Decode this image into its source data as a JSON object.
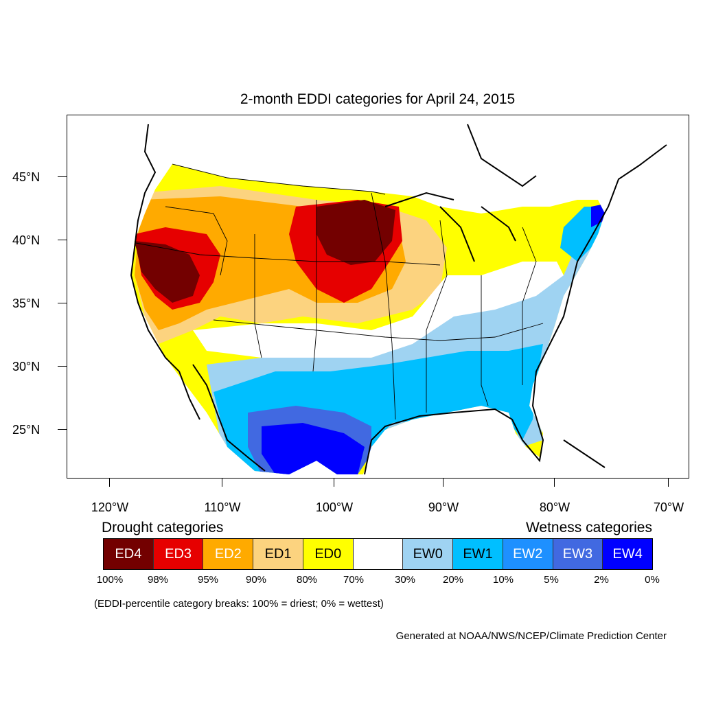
{
  "title": "2-month EDDI categories for April 24, 2015",
  "lat_axis": [
    "45°N",
    "40°N",
    "35°N",
    "30°N",
    "25°N"
  ],
  "lon_axis": [
    "120°W",
    "110°W",
    "100°W",
    "90°W",
    "80°W",
    "70°W"
  ],
  "legend": {
    "drought_title": "Drought categories",
    "wetness_title": "Wetness categories",
    "categories": [
      {
        "label": "ED4",
        "color": "#730000",
        "text_color": "#ffffff"
      },
      {
        "label": "ED3",
        "color": "#e60000",
        "text_color": "#ffffff"
      },
      {
        "label": "ED2",
        "color": "#ffaa00",
        "text_color": "#ffffff"
      },
      {
        "label": "ED1",
        "color": "#fcd37f",
        "text_color": "#000000"
      },
      {
        "label": "ED0",
        "color": "#ffff00",
        "text_color": "#000000"
      },
      {
        "label": "",
        "color": "#ffffff",
        "text_color": "#000000"
      },
      {
        "label": "EW0",
        "color": "#9fd3f2",
        "text_color": "#000000"
      },
      {
        "label": "EW1",
        "color": "#00bfff",
        "text_color": "#000000"
      },
      {
        "label": "EW2",
        "color": "#1e90ff",
        "text_color": "#ffffff"
      },
      {
        "label": "EW3",
        "color": "#4169e1",
        "text_color": "#ffffff"
      },
      {
        "label": "EW4",
        "color": "#0000ff",
        "text_color": "#ffffff"
      }
    ],
    "breaks": [
      "100%",
      "98%",
      "95%",
      "90%",
      "80%",
      "70%",
      "30%",
      "20%",
      "10%",
      "5%",
      "2%",
      "0%"
    ]
  },
  "footnote": "(EDDI-percentile category breaks: 100% = driest; 0% = wettest)",
  "credit": "Generated at NOAA/NWS/NCEP/Climate Prediction Center"
}
